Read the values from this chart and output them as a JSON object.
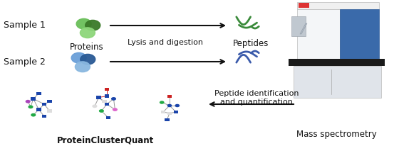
{
  "bg_color": "#ffffff",
  "fig_width": 5.53,
  "fig_height": 2.07,
  "dpi": 100,
  "labels": {
    "sample1": "Sample 1",
    "sample2": "Sample 2",
    "proteins": "Proteins",
    "lysis": "Lysis and digestion",
    "peptides": "Peptides",
    "pcq": "ProteinClusterQuant",
    "peptide_id": "Peptide identification\nand quantification",
    "mass_spec": "Mass spectrometry"
  },
  "protein_colors_s1": [
    "#6abf5a",
    "#3a7a28",
    "#8dd67a"
  ],
  "protein_colors_s2": [
    "#6a9fd8",
    "#2a5a95",
    "#8ab8e0"
  ],
  "peptide_color_s1": "#3a8a3a",
  "peptide_color_s2": "#3a5aaa",
  "arrow_color": "#111111",
  "network_node_blue": "#1a44aa",
  "network_node_green": "#22aa44",
  "network_node_purple": "#aa44bb",
  "network_node_white": "#dddddd",
  "network_node_red": "#cc2222",
  "network_node_pink": "#dd66cc",
  "network_edge_color": "#999999",
  "network_edge_red": "#cc2222",
  "text_color": "#111111",
  "ms_body_light": "#e8eef5",
  "ms_body_blue": "#3a6aaa",
  "ms_cabinet": "#d8dde5",
  "ms_desk": "#333333"
}
